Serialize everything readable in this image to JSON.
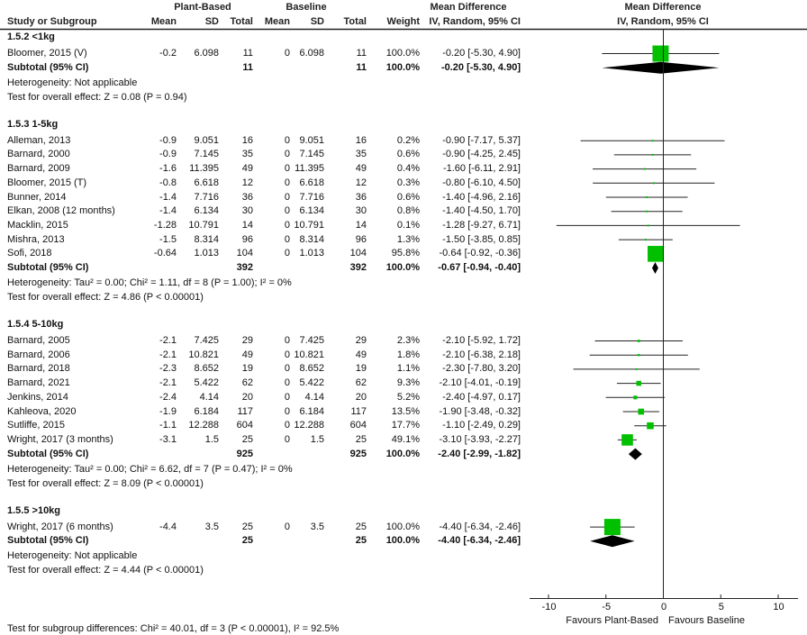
{
  "header": {
    "group1": "Plant-Based",
    "group2": "Baseline",
    "effect_title": "Mean Difference",
    "plot_title": "Mean Difference",
    "plot_subtitle": "IV, Random, 95% CI",
    "columns": [
      "Study or Subgroup",
      "Mean",
      "SD",
      "Total",
      "Mean",
      "SD",
      "Total",
      "Weight",
      "IV, Random, 95% CI"
    ]
  },
  "chart_data": {
    "type": "forest",
    "xlim": [
      -10,
      10
    ],
    "x_ticks": [
      "-10",
      "-5",
      "0",
      "5",
      "10"
    ],
    "x_tick_values": [
      -10,
      -5,
      0,
      5,
      10
    ],
    "xlabel_left": "Favours Plant-Based",
    "xlabel_right": "Favours Baseline",
    "colors": {
      "study": "#00c000",
      "subtotal": "#000000"
    },
    "sections": [
      {
        "title": "1.5.2 <1kg",
        "studies": [
          {
            "name": "Bloomer, 2015 (V)",
            "mean1": "-0.2",
            "sd1": "6.098",
            "n1": "11",
            "mean2": "0",
            "sd2": "6.098",
            "n2": "11",
            "weight": "100.0%",
            "ci": "-0.20 [-5.30, 4.90]",
            "md": -0.2,
            "lo": -5.3,
            "hi": 4.9,
            "w": 100.0
          }
        ],
        "subtotal": {
          "label": "Subtotal (95% CI)",
          "n1": "11",
          "n2": "11",
          "weight": "100.0%",
          "ci": "-0.20 [-5.30, 4.90]",
          "md": -0.2,
          "lo": -5.3,
          "hi": 4.9
        },
        "heterogeneity": "Heterogeneity: Not applicable",
        "overall": "Test for overall effect: Z = 0.08 (P = 0.94)"
      },
      {
        "title": "1.5.3 1-5kg",
        "studies": [
          {
            "name": "Alleman, 2013",
            "mean1": "-0.9",
            "sd1": "9.051",
            "n1": "16",
            "mean2": "0",
            "sd2": "9.051",
            "n2": "16",
            "weight": "0.2%",
            "ci": "-0.90 [-7.17, 5.37]",
            "md": -0.9,
            "lo": -7.17,
            "hi": 5.37,
            "w": 0.2
          },
          {
            "name": "Barnard, 2000",
            "mean1": "-0.9",
            "sd1": "7.145",
            "n1": "35",
            "mean2": "0",
            "sd2": "7.145",
            "n2": "35",
            "weight": "0.6%",
            "ci": "-0.90 [-4.25, 2.45]",
            "md": -0.9,
            "lo": -4.25,
            "hi": 2.45,
            "w": 0.6
          },
          {
            "name": "Barnard, 2009",
            "mean1": "-1.6",
            "sd1": "11.395",
            "n1": "49",
            "mean2": "0",
            "sd2": "11.395",
            "n2": "49",
            "weight": "0.4%",
            "ci": "-1.60 [-6.11, 2.91]",
            "md": -1.6,
            "lo": -6.11,
            "hi": 2.91,
            "w": 0.4
          },
          {
            "name": "Bloomer, 2015 (T)",
            "mean1": "-0.8",
            "sd1": "6.618",
            "n1": "12",
            "mean2": "0",
            "sd2": "6.618",
            "n2": "12",
            "weight": "0.3%",
            "ci": "-0.80 [-6.10, 4.50]",
            "md": -0.8,
            "lo": -6.1,
            "hi": 4.5,
            "w": 0.3
          },
          {
            "name": "Bunner, 2014",
            "mean1": "-1.4",
            "sd1": "7.716",
            "n1": "36",
            "mean2": "0",
            "sd2": "7.716",
            "n2": "36",
            "weight": "0.6%",
            "ci": "-1.40 [-4.96, 2.16]",
            "md": -1.4,
            "lo": -4.96,
            "hi": 2.16,
            "w": 0.6
          },
          {
            "name": "Elkan, 2008 (12 months)",
            "mean1": "-1.4",
            "sd1": "6.134",
            "n1": "30",
            "mean2": "0",
            "sd2": "6.134",
            "n2": "30",
            "weight": "0.8%",
            "ci": "-1.40 [-4.50, 1.70]",
            "md": -1.4,
            "lo": -4.5,
            "hi": 1.7,
            "w": 0.8
          },
          {
            "name": "Macklin, 2015",
            "mean1": "-1.28",
            "sd1": "10.791",
            "n1": "14",
            "mean2": "0",
            "sd2": "10.791",
            "n2": "14",
            "weight": "0.1%",
            "ci": "-1.28 [-9.27, 6.71]",
            "md": -1.28,
            "lo": -9.27,
            "hi": 6.71,
            "w": 0.1
          },
          {
            "name": "Mishra, 2013",
            "mean1": "-1.5",
            "sd1": "8.314",
            "n1": "96",
            "mean2": "0",
            "sd2": "8.314",
            "n2": "96",
            "weight": "1.3%",
            "ci": "-1.50 [-3.85, 0.85]",
            "md": -1.5,
            "lo": -3.85,
            "hi": 0.85,
            "w": 1.3
          },
          {
            "name": "Sofi, 2018",
            "mean1": "-0.64",
            "sd1": "1.013",
            "n1": "104",
            "mean2": "0",
            "sd2": "1.013",
            "n2": "104",
            "weight": "95.8%",
            "ci": "-0.64 [-0.92, -0.36]",
            "md": -0.64,
            "lo": -0.92,
            "hi": -0.36,
            "w": 95.8
          }
        ],
        "subtotal": {
          "label": "Subtotal (95% CI)",
          "n1": "392",
          "n2": "392",
          "weight": "100.0%",
          "ci": "-0.67 [-0.94, -0.40]",
          "md": -0.67,
          "lo": -0.94,
          "hi": -0.4
        },
        "heterogeneity": "Heterogeneity: Tau² = 0.00; Chi² = 1.11, df = 8 (P = 1.00); I² = 0%",
        "overall": "Test for overall effect: Z = 4.86 (P < 0.00001)"
      },
      {
        "title": "1.5.4 5-10kg",
        "studies": [
          {
            "name": "Barnard, 2005",
            "mean1": "-2.1",
            "sd1": "7.425",
            "n1": "29",
            "mean2": "0",
            "sd2": "7.425",
            "n2": "29",
            "weight": "2.3%",
            "ci": "-2.10 [-5.92, 1.72]",
            "md": -2.1,
            "lo": -5.92,
            "hi": 1.72,
            "w": 2.3
          },
          {
            "name": "Barnard, 2006",
            "mean1": "-2.1",
            "sd1": "10.821",
            "n1": "49",
            "mean2": "0",
            "sd2": "10.821",
            "n2": "49",
            "weight": "1.8%",
            "ci": "-2.10 [-6.38, 2.18]",
            "md": -2.1,
            "lo": -6.38,
            "hi": 2.18,
            "w": 1.8
          },
          {
            "name": "Barnard, 2018",
            "mean1": "-2.3",
            "sd1": "8.652",
            "n1": "19",
            "mean2": "0",
            "sd2": "8.652",
            "n2": "19",
            "weight": "1.1%",
            "ci": "-2.30 [-7.80, 3.20]",
            "md": -2.3,
            "lo": -7.8,
            "hi": 3.2,
            "w": 1.1
          },
          {
            "name": "Barnard, 2021",
            "mean1": "-2.1",
            "sd1": "5.422",
            "n1": "62",
            "mean2": "0",
            "sd2": "5.422",
            "n2": "62",
            "weight": "9.3%",
            "ci": "-2.10 [-4.01, -0.19]",
            "md": -2.1,
            "lo": -4.01,
            "hi": -0.19,
            "w": 9.3
          },
          {
            "name": "Jenkins, 2014",
            "mean1": "-2.4",
            "sd1": "4.14",
            "n1": "20",
            "mean2": "0",
            "sd2": "4.14",
            "n2": "20",
            "weight": "5.2%",
            "ci": "-2.40 [-4.97, 0.17]",
            "md": -2.4,
            "lo": -4.97,
            "hi": 0.17,
            "w": 5.2
          },
          {
            "name": "Kahleova, 2020",
            "mean1": "-1.9",
            "sd1": "6.184",
            "n1": "117",
            "mean2": "0",
            "sd2": "6.184",
            "n2": "117",
            "weight": "13.5%",
            "ci": "-1.90 [-3.48, -0.32]",
            "md": -1.9,
            "lo": -3.48,
            "hi": -0.32,
            "w": 13.5
          },
          {
            "name": "Sutliffe, 2015",
            "mean1": "-1.1",
            "sd1": "12.288",
            "n1": "604",
            "mean2": "0",
            "sd2": "12.288",
            "n2": "604",
            "weight": "17.7%",
            "ci": "-1.10 [-2.49, 0.29]",
            "md": -1.1,
            "lo": -2.49,
            "hi": 0.29,
            "w": 17.7
          },
          {
            "name": "Wright, 2017 (3 months)",
            "mean1": "-3.1",
            "sd1": "1.5",
            "n1": "25",
            "mean2": "0",
            "sd2": "1.5",
            "n2": "25",
            "weight": "49.1%",
            "ci": "-3.10 [-3.93, -2.27]",
            "md": -3.1,
            "lo": -3.93,
            "hi": -2.27,
            "w": 49.1
          }
        ],
        "subtotal": {
          "label": "Subtotal (95% CI)",
          "n1": "925",
          "n2": "925",
          "weight": "100.0%",
          "ci": "-2.40 [-2.99, -1.82]",
          "md": -2.4,
          "lo": -2.99,
          "hi": -1.82
        },
        "heterogeneity": "Heterogeneity: Tau² = 0.00; Chi² = 6.62, df = 7 (P = 0.47); I² = 0%",
        "overall": "Test for overall effect: Z = 8.09 (P < 0.00001)"
      },
      {
        "title": "1.5.5 >10kg",
        "studies": [
          {
            "name": "Wright, 2017 (6 months)",
            "mean1": "-4.4",
            "sd1": "3.5",
            "n1": "25",
            "mean2": "0",
            "sd2": "3.5",
            "n2": "25",
            "weight": "100.0%",
            "ci": "-4.40 [-6.34, -2.46]",
            "md": -4.4,
            "lo": -6.34,
            "hi": -2.46,
            "w": 100.0
          }
        ],
        "subtotal": {
          "label": "Subtotal (95% CI)",
          "n1": "25",
          "n2": "25",
          "weight": "100.0%",
          "ci": "-4.40 [-6.34, -2.46]",
          "md": -4.4,
          "lo": -6.34,
          "hi": -2.46
        },
        "heterogeneity": "Heterogeneity: Not applicable",
        "overall": "Test for overall effect: Z = 4.44 (P < 0.00001)"
      }
    ],
    "subgroup_test": "Test for subgroup differences: Chi² = 40.01, df = 3 (P < 0.00001), I² = 92.5%"
  }
}
